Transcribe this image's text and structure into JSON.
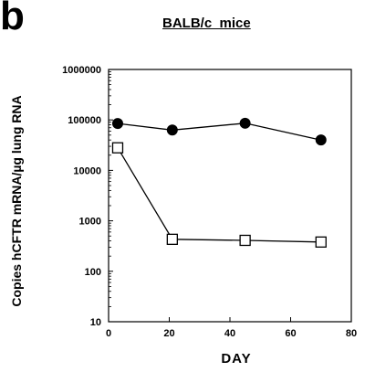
{
  "panel_letter": "b",
  "chart_data": {
    "type": "line",
    "title": "BALB/c  mice",
    "xlabel": "DAY",
    "ylabel": "Copies hCFTR mRNA/µg lung RNA",
    "xlim": [
      0,
      80
    ],
    "ylim": [
      10,
      1000000
    ],
    "yscale": "log",
    "xticks": [
      0,
      20,
      40,
      60,
      80
    ],
    "yticks": [
      10,
      100,
      1000,
      10000,
      100000,
      1000000
    ],
    "ytick_labels": [
      "10",
      "100",
      "1000",
      "10000",
      "100000",
      "1000000"
    ],
    "grid": false,
    "series": [
      {
        "marker": "filled-circle",
        "color": "#000000",
        "x": [
          3,
          21,
          45,
          70
        ],
        "values": [
          85000,
          63000,
          86000,
          40000
        ]
      },
      {
        "marker": "open-square",
        "color": "#000000",
        "x": [
          3,
          21,
          45,
          70
        ],
        "values": [
          28000,
          430,
          410,
          380
        ]
      }
    ]
  }
}
